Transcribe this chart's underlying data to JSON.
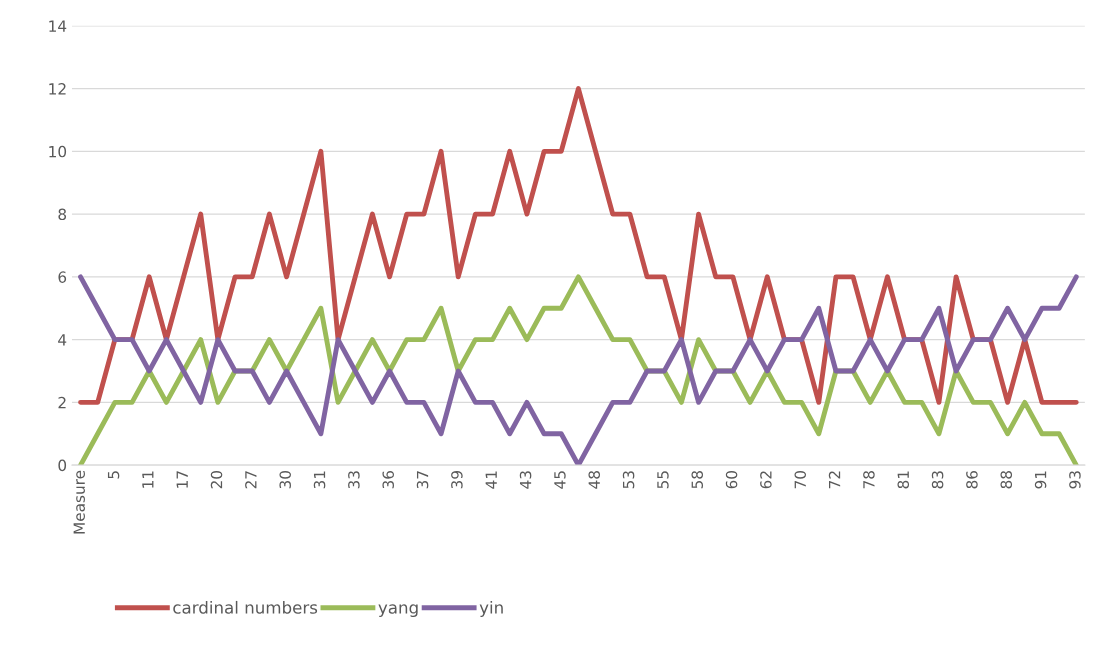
{
  "chart_data": {
    "type": "line",
    "categories": [
      "Measure",
      null,
      "5",
      null,
      "11",
      null,
      "17",
      null,
      "20",
      null,
      "27",
      null,
      "30",
      null,
      "31",
      null,
      "33",
      null,
      "36",
      null,
      "37",
      null,
      "39",
      null,
      "41",
      null,
      "43",
      null,
      "45",
      null,
      "48",
      null,
      "53",
      null,
      "55",
      null,
      "58",
      null,
      "60",
      null,
      "62",
      null,
      "70",
      null,
      "72",
      null,
      "78",
      null,
      "81",
      null,
      "83",
      null,
      "86",
      null,
      "88",
      null,
      "91",
      null,
      "93"
    ],
    "series": [
      {
        "name": "cardinal numbers",
        "color": "#c0504d",
        "values": [
          2,
          2,
          4,
          4,
          6,
          4,
          6,
          8,
          4,
          6,
          6,
          8,
          6,
          8,
          10,
          4,
          6,
          8,
          6,
          8,
          8,
          10,
          6,
          8,
          8,
          10,
          8,
          10,
          10,
          12,
          10,
          8,
          8,
          6,
          6,
          4,
          8,
          6,
          6,
          4,
          6,
          4,
          4,
          2,
          6,
          6,
          4,
          6,
          4,
          4,
          2,
          6,
          4,
          4,
          2,
          4,
          2,
          2,
          2
        ]
      },
      {
        "name": "yang",
        "color": "#9bbb59",
        "values": [
          0,
          1,
          2,
          2,
          3,
          2,
          3,
          4,
          2,
          3,
          3,
          4,
          3,
          4,
          5,
          2,
          3,
          4,
          3,
          4,
          4,
          5,
          3,
          4,
          4,
          5,
          4,
          5,
          5,
          6,
          5,
          4,
          4,
          3,
          3,
          2,
          4,
          3,
          3,
          2,
          3,
          2,
          2,
          1,
          3,
          3,
          2,
          3,
          2,
          2,
          1,
          3,
          2,
          2,
          1,
          2,
          1,
          1,
          0
        ]
      },
      {
        "name": "yin",
        "color": "#8064a2",
        "values": [
          6,
          5,
          4,
          4,
          3,
          4,
          3,
          2,
          4,
          3,
          3,
          2,
          3,
          2,
          1,
          4,
          3,
          2,
          3,
          2,
          2,
          1,
          3,
          2,
          2,
          1,
          2,
          1,
          1,
          0,
          1,
          2,
          2,
          3,
          3,
          4,
          2,
          3,
          3,
          4,
          3,
          4,
          4,
          5,
          3,
          3,
          4,
          3,
          4,
          4,
          5,
          3,
          4,
          4,
          5,
          4,
          5,
          5,
          6
        ]
      }
    ],
    "ylim": [
      0,
      14
    ],
    "yticks": [
      0,
      2,
      4,
      6,
      8,
      10,
      12,
      14
    ],
    "grid": "y",
    "legend": "bottom left",
    "marker": "none",
    "line_style": "solid"
  }
}
